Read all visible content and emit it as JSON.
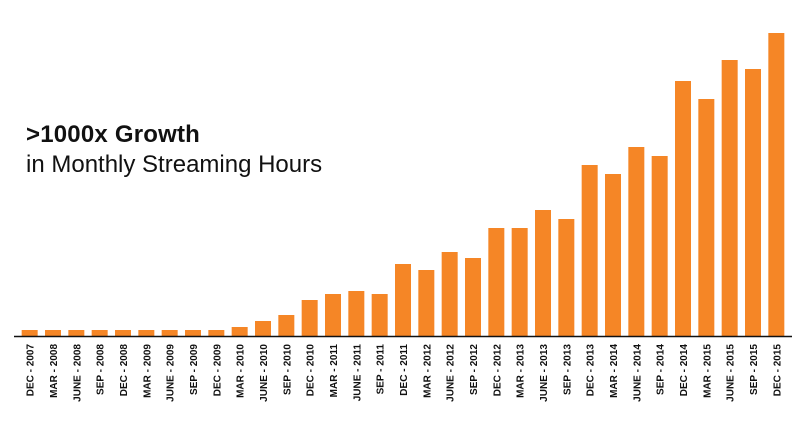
{
  "chart_data": {
    "type": "bar",
    "title": ">1000x Growth",
    "subtitle": "in Monthly Streaming Hours",
    "xlabel": "",
    "ylabel": "",
    "categories": [
      "DEC - 2007",
      "MAR - 2008",
      "JUNE - 2008",
      "SEP - 2008",
      "DEC - 2008",
      "MAR - 2009",
      "JUNE - 2009",
      "SEP - 2009",
      "DEC - 2009",
      "MAR - 2010",
      "JUNE - 2010",
      "SEP - 2010",
      "DEC - 2010",
      "MAR - 2011",
      "JUNE - 2011",
      "SEP - 2011",
      "DEC - 2011",
      "MAR - 2012",
      "JUNE - 2012",
      "SEP - 2012",
      "DEC - 2012",
      "MAR - 2013",
      "JUNE - 2013",
      "SEP - 2013",
      "DEC - 2013",
      "MAR - 2014",
      "JUNE - 2014",
      "SEP - 2014",
      "DEC - 2014",
      "MAR - 2015",
      "JUNE - 2015",
      "SEP - 2015",
      "DEC - 2015"
    ],
    "values": [
      2,
      2,
      2,
      2,
      2,
      2,
      2,
      2,
      2,
      3,
      5,
      7,
      12,
      14,
      15,
      14,
      24,
      22,
      28,
      26,
      36,
      36,
      42,
      39,
      57,
      54,
      63,
      60,
      85,
      79,
      92,
      89,
      101
    ],
    "ylim": [
      0,
      104
    ],
    "legend": "none",
    "grid": false,
    "colors": {
      "bar": "#f58626",
      "axis": "#111111",
      "text": "#111111"
    }
  }
}
